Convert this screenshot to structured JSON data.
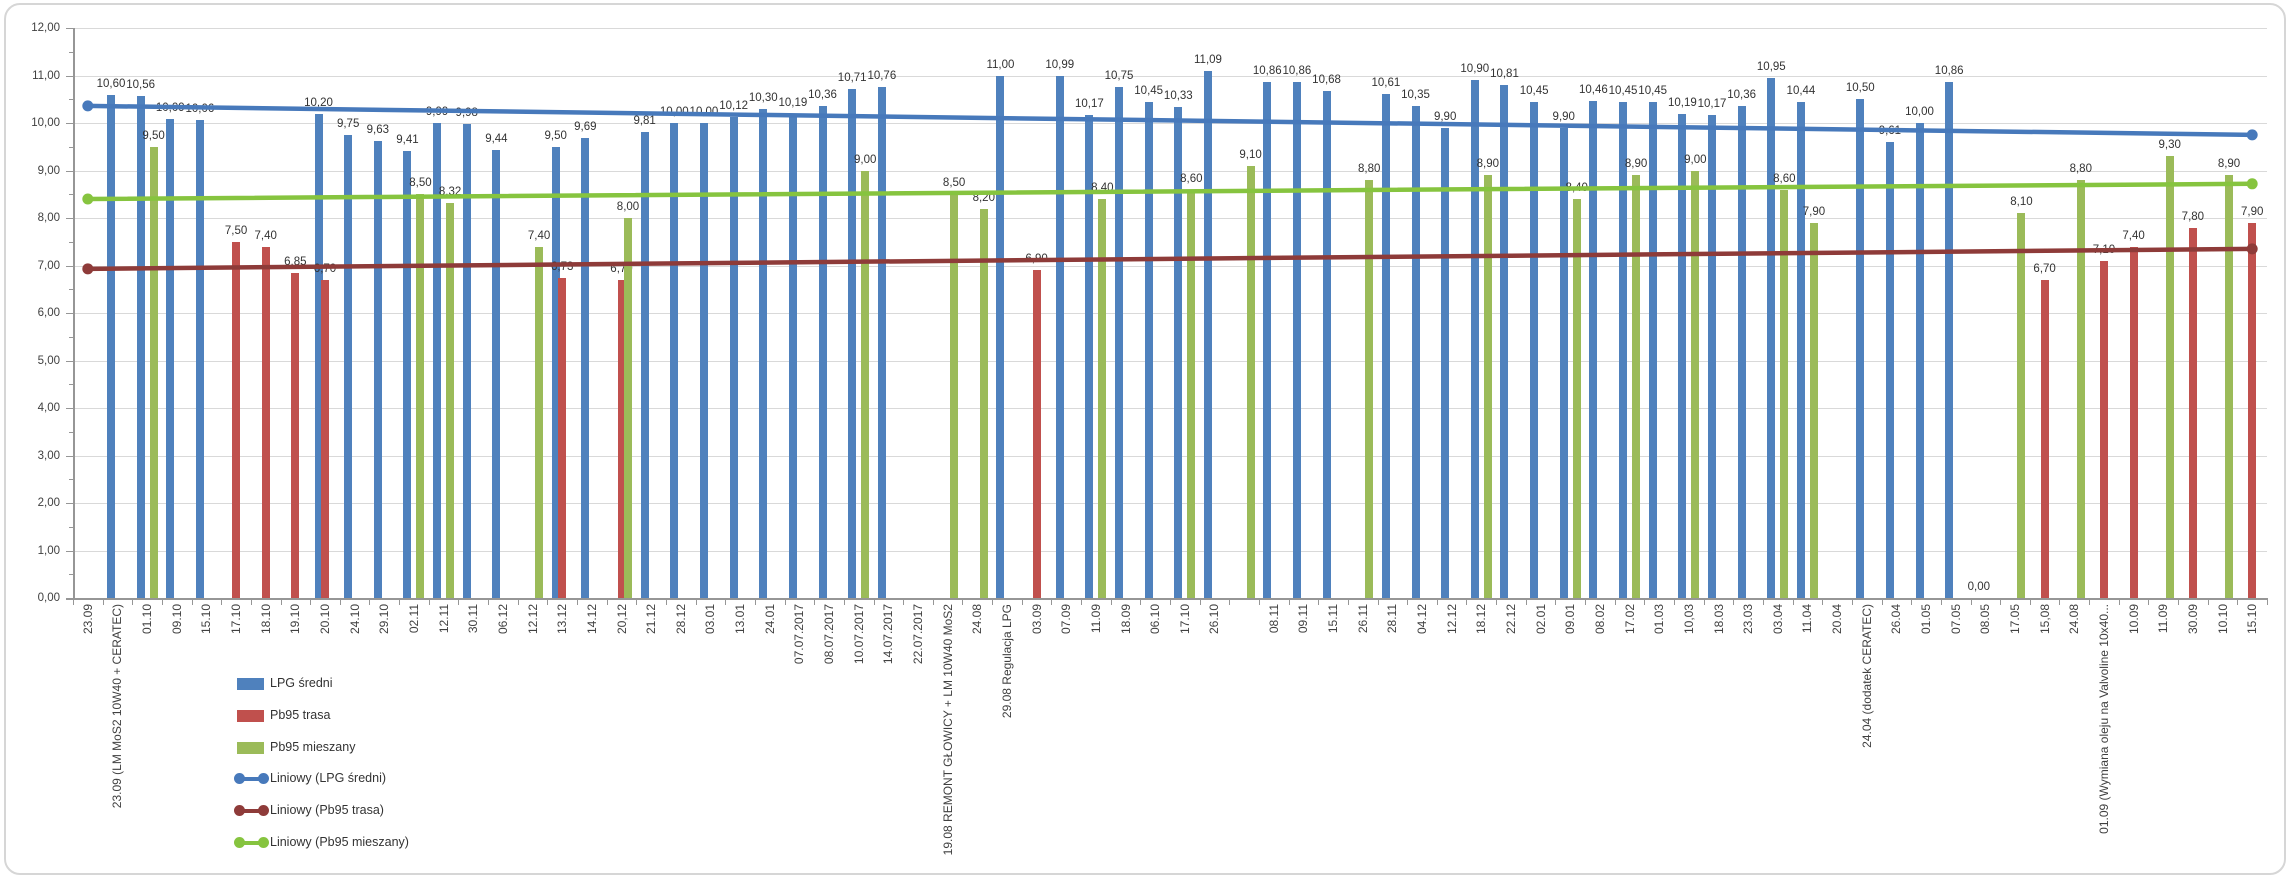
{
  "chart_data": {
    "type": "bar",
    "grid": true,
    "legend_position": "bottom-left",
    "decimal_separator": ",",
    "ylim": [
      0,
      12
    ],
    "ytick_interval": 1,
    "ytick_labels": [
      "0,00",
      "1,00",
      "2,00",
      "3,00",
      "4,00",
      "5,00",
      "6,00",
      "7,00",
      "8,00",
      "9,00",
      "10,00",
      "11,00",
      "12,00"
    ],
    "series": [
      {
        "key": "lpg",
        "name": "LPG średni",
        "color": "#4F81BD"
      },
      {
        "key": "trasa",
        "name": "Pb95 trasa",
        "color": "#C0504D"
      },
      {
        "key": "mieszany",
        "name": "Pb95 mieszany",
        "color": "#9BBB59"
      }
    ],
    "trendlines": [
      {
        "name": "Liniowy (LPG średni)",
        "color": "#4779BB",
        "start": 10.36,
        "end": 9.75
      },
      {
        "name": "Liniowy (Pb95 trasa)",
        "color": "#8E3B39",
        "start": 6.93,
        "end": 7.35
      },
      {
        "name": "Liniowy (Pb95 mieszany)",
        "color": "#86C43F",
        "start": 8.4,
        "end": 8.72
      }
    ],
    "categories": [
      {
        "label": "23.09"
      },
      {
        "label": "23.09 (LM MoS2 10W40 + CERATEC)",
        "lpg": 10.6
      },
      {
        "label": "01.10",
        "lpg": 10.56,
        "mieszany": 9.5
      },
      {
        "label": "09.10",
        "lpg": 10.09
      },
      {
        "label": "15.10",
        "lpg": 10.06
      },
      {
        "label": "17.10",
        "trasa": 7.5
      },
      {
        "label": "18.10",
        "trasa": 7.4
      },
      {
        "label": "19.10",
        "trasa": 6.85
      },
      {
        "label": "20.10",
        "lpg": 10.2,
        "trasa": 6.7
      },
      {
        "label": "24.10",
        "lpg": 9.75
      },
      {
        "label": "29.10",
        "lpg": 9.63
      },
      {
        "label": "02.11",
        "lpg": 9.41,
        "mieszany": 8.5
      },
      {
        "label": "12.11",
        "lpg": 9.99,
        "mieszany": 8.32
      },
      {
        "label": "30.11",
        "lpg": 9.98
      },
      {
        "label": "06.12",
        "lpg": 9.44
      },
      {
        "label": "12.12",
        "mieszany": 7.4
      },
      {
        "label": "13.12",
        "lpg": 9.5,
        "trasa": 6.73
      },
      {
        "label": "14.12",
        "lpg": 9.69
      },
      {
        "label": "20,12",
        "trasa": 6.7,
        "mieszany": 8.0
      },
      {
        "label": "21.12",
        "lpg": 9.81
      },
      {
        "label": "28.12",
        "lpg": 10.0
      },
      {
        "label": "03.01",
        "lpg": 10.0
      },
      {
        "label": "13.01",
        "lpg": 10.12
      },
      {
        "label": "24.01",
        "lpg": 10.3
      },
      {
        "label": "07.07.2017",
        "lpg": 10.19
      },
      {
        "label": "08.07.2017",
        "lpg": 10.36
      },
      {
        "label": "10.07.2017",
        "lpg": 10.71,
        "mieszany": 9.0
      },
      {
        "label": "14.07.2017",
        "lpg": 10.76
      },
      {
        "label": "22.07.2017"
      },
      {
        "label": "19.08 REMONT GŁOWICY + LM 10W40 MoS2",
        "mieszany": 8.5
      },
      {
        "label": "24.08",
        "mieszany": 8.2
      },
      {
        "label": "29.08 Regulacja LPG",
        "lpg": 11.0
      },
      {
        "label": "03.09",
        "trasa": 6.9
      },
      {
        "label": "07.09",
        "lpg": 10.99
      },
      {
        "label": "11.09",
        "lpg": 10.17,
        "mieszany": 8.4
      },
      {
        "label": "18.09",
        "lpg": 10.75
      },
      {
        "label": "06.10",
        "lpg": 10.45
      },
      {
        "label": "17.10",
        "lpg": 10.33,
        "mieszany": 8.6
      },
      {
        "label": "26.10",
        "lpg": 11.09
      },
      {
        "label": "",
        "mieszany": 9.1
      },
      {
        "label": "08.11",
        "lpg": 10.86
      },
      {
        "label": "09.11",
        "lpg": 10.86
      },
      {
        "label": "15.11",
        "lpg": 10.68
      },
      {
        "label": "26.11",
        "mieszany": 8.8
      },
      {
        "label": "28.11",
        "lpg": 10.61
      },
      {
        "label": "04.12",
        "lpg": 10.35
      },
      {
        "label": "12.12",
        "lpg": 9.9
      },
      {
        "label": "18.12",
        "lpg": 10.9,
        "mieszany": 8.9
      },
      {
        "label": "22.12",
        "lpg": 10.81
      },
      {
        "label": "02.01",
        "lpg": 10.45
      },
      {
        "label": "09.01",
        "lpg": 9.9,
        "mieszany": 8.4
      },
      {
        "label": "08.02",
        "lpg": 10.46
      },
      {
        "label": "17.02",
        "lpg": 10.45,
        "mieszany": 8.9
      },
      {
        "label": "01.03",
        "lpg": 10.45
      },
      {
        "label": "10,03",
        "lpg": 10.19,
        "mieszany": 9.0
      },
      {
        "label": "18.03",
        "lpg": 10.17
      },
      {
        "label": "23.03",
        "lpg": 10.36
      },
      {
        "label": "03.04",
        "lpg": 10.95,
        "mieszany": 8.6
      },
      {
        "label": "11.04",
        "lpg": 10.44,
        "mieszany": 7.9
      },
      {
        "label": "20.04"
      },
      {
        "label": "24.04 (dodatek CERATEC)",
        "lpg": 10.5
      },
      {
        "label": "26.04",
        "lpg": 9.61
      },
      {
        "label": "01.05",
        "lpg": 10.0
      },
      {
        "label": "07.05",
        "lpg": 10.86
      },
      {
        "label": "08.05",
        "lpg": 0.0
      },
      {
        "label": "17.05",
        "mieszany": 8.1
      },
      {
        "label": "15,08",
        "trasa": 6.7
      },
      {
        "label": "24.08",
        "mieszany": 8.8
      },
      {
        "label": "01.09 (Wymiana oleju na Valvoline 10x40...",
        "trasa": 7.1
      },
      {
        "label": "10.09",
        "trasa": 7.4
      },
      {
        "label": "11.09",
        "mieszany": 9.3
      },
      {
        "label": "30.09",
        "trasa": 7.8
      },
      {
        "label": "10.10",
        "mieszany": 8.9
      },
      {
        "label": "15.10",
        "trasa": 7.9
      }
    ]
  },
  "legend": {
    "items": [
      "LPG średni",
      "Pb95 trasa",
      "Pb95 mieszany",
      "Liniowy (LPG średni)",
      "Liniowy (Pb95 trasa)",
      "Liniowy (Pb95 mieszany)"
    ]
  }
}
